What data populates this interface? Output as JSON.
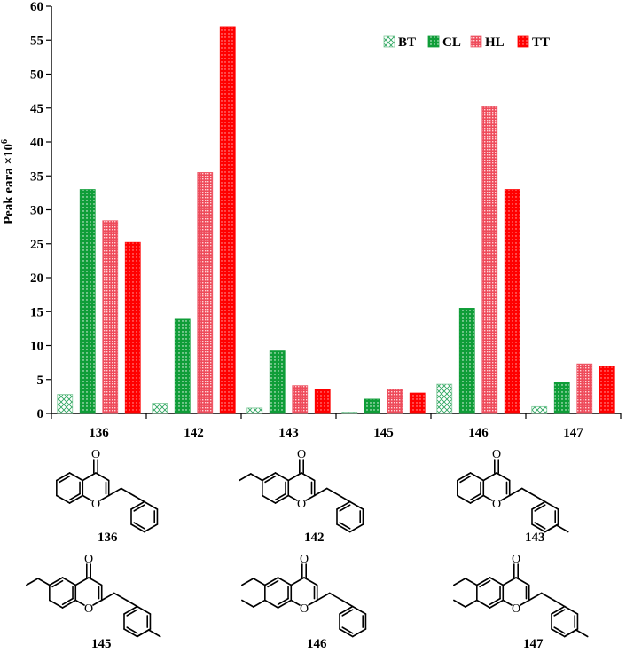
{
  "chart_data": {
    "type": "bar",
    "title": "",
    "xlabel": "",
    "ylabel": "Peak eara ×10⁶",
    "ylabel_text": "Peak eara ×10",
    "ylabel_sup": "6",
    "ylim": [
      0,
      60
    ],
    "yticks": [
      0,
      5,
      10,
      15,
      20,
      25,
      30,
      35,
      40,
      45,
      50,
      55,
      60
    ],
    "grid": false,
    "legend_position": "top-right",
    "categories": [
      "136",
      "142",
      "143",
      "145",
      "146",
      "147"
    ],
    "series": [
      {
        "name": "BT",
        "color": "#7fc99a",
        "pattern": "crosshatch",
        "values": [
          2.8,
          1.5,
          0.8,
          0.2,
          4.3,
          1.0
        ]
      },
      {
        "name": "CL",
        "color": "#0f9d38",
        "pattern": "dotted",
        "values": [
          33.0,
          14.0,
          9.2,
          2.1,
          15.5,
          4.6
        ]
      },
      {
        "name": "HL",
        "color": "#ee5f6d",
        "pattern": "fine",
        "values": [
          28.4,
          35.5,
          4.1,
          3.6,
          45.2,
          7.3
        ]
      },
      {
        "name": "TT",
        "color": "#ff0000",
        "pattern": "dotted",
        "values": [
          25.2,
          57.0,
          3.6,
          3.0,
          33.0,
          6.9
        ]
      }
    ]
  },
  "structures": [
    {
      "id": "136",
      "label": "136"
    },
    {
      "id": "142",
      "label": "142"
    },
    {
      "id": "143",
      "label": "143"
    },
    {
      "id": "145",
      "label": "145"
    },
    {
      "id": "146",
      "label": "146"
    },
    {
      "id": "147",
      "label": "147"
    }
  ],
  "atoms": {
    "carbonyl_o": "O",
    "ring_o": "O"
  }
}
